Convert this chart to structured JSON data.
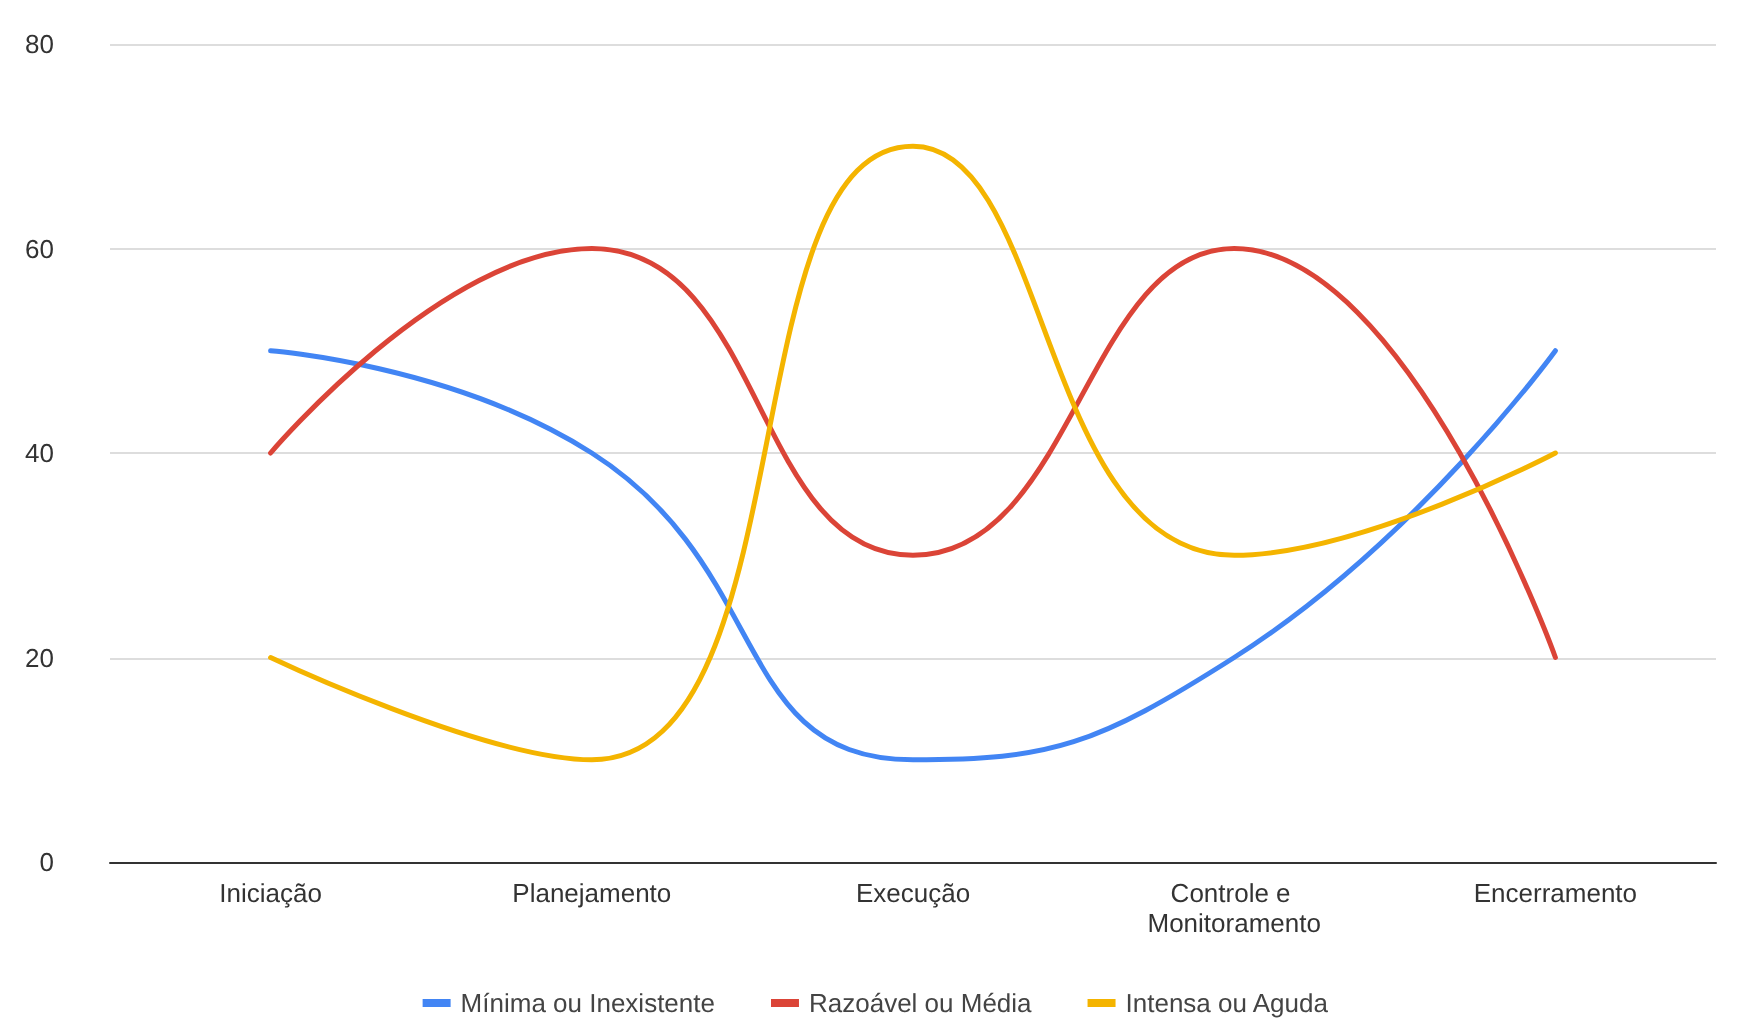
{
  "chart_data": {
    "type": "line",
    "categories": [
      "Iniciação",
      "Planejamento",
      "Execução",
      "Controle e Monitoramento",
      "Encerramento"
    ],
    "series": [
      {
        "name": "Mínima ou Inexistente",
        "color": "#4285f4",
        "values": [
          50,
          40,
          10,
          20,
          50
        ]
      },
      {
        "name": "Razoável ou Média",
        "color": "#db4437",
        "values": [
          40,
          60,
          30,
          60,
          20
        ]
      },
      {
        "name": "Intensa ou Aguda",
        "color": "#f4b400",
        "values": [
          20,
          10,
          70,
          30,
          40
        ]
      }
    ],
    "ylim": [
      0,
      80
    ],
    "yticks": [
      0,
      20,
      40,
      60,
      80
    ],
    "grid": "y",
    "legend": "bottom",
    "marker": "none",
    "line_style": "solid"
  }
}
